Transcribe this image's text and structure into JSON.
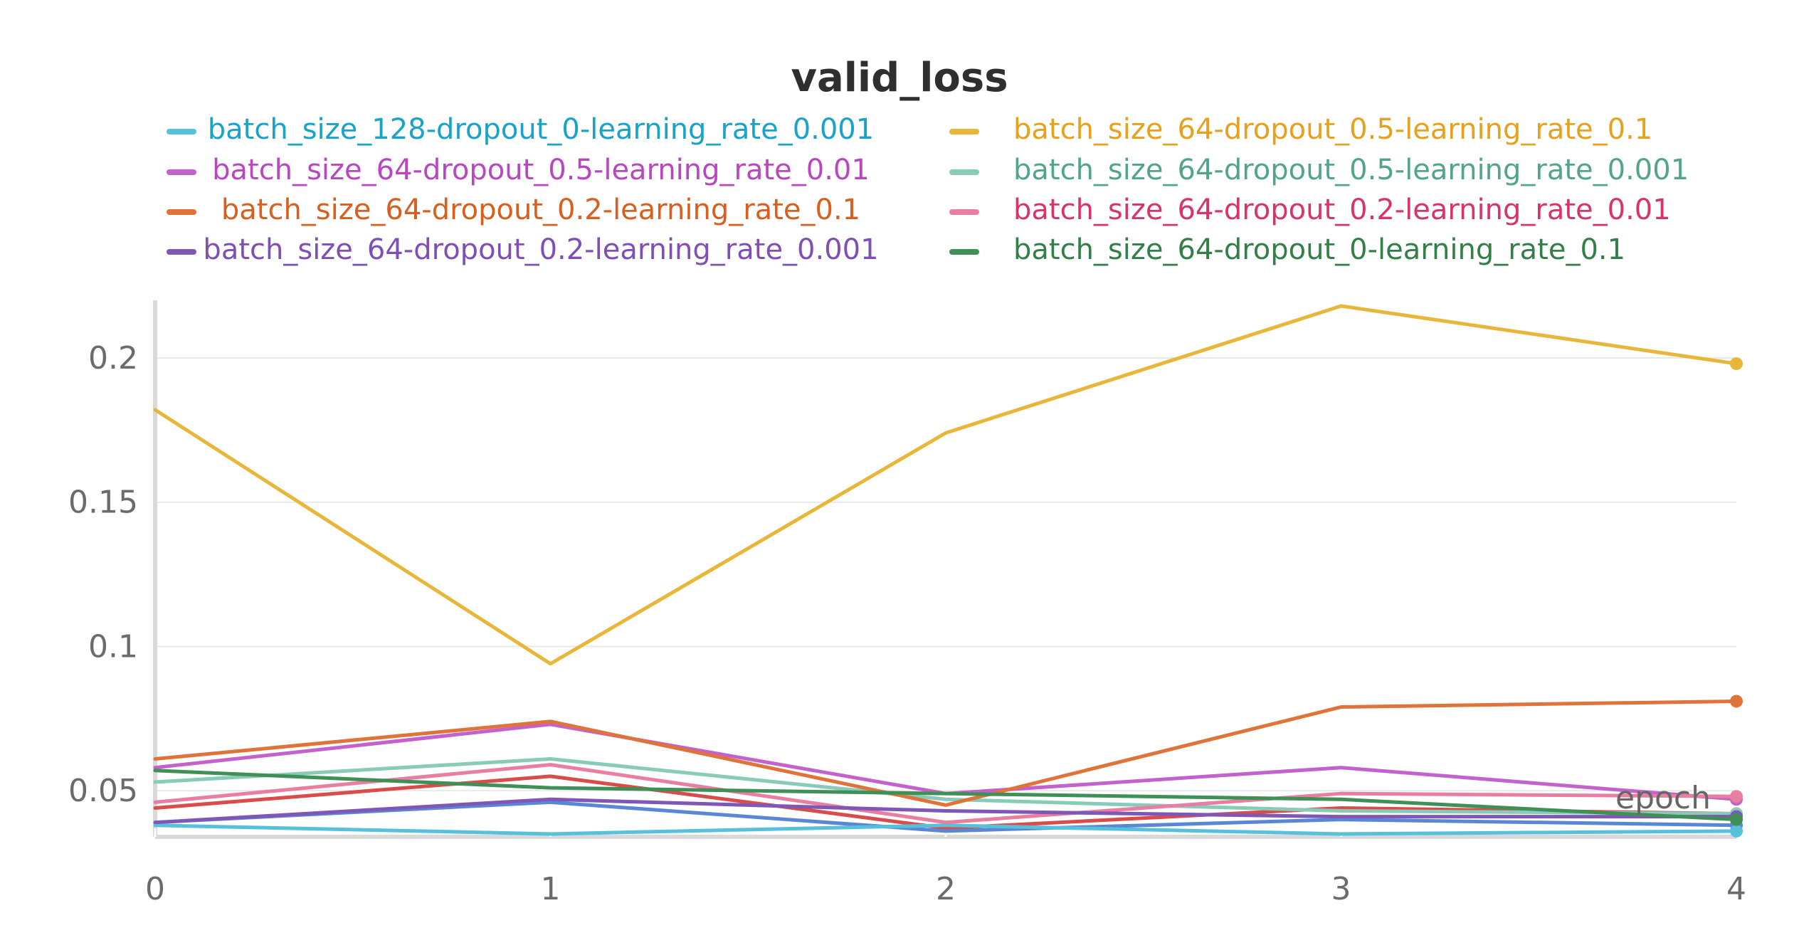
{
  "chart_data": {
    "type": "line",
    "title": "valid_loss",
    "xlabel": "epoch",
    "ylabel": "",
    "x": [
      0,
      1,
      2,
      3,
      4
    ],
    "xlim": [
      0,
      4
    ],
    "ylim": [
      0.034,
      0.218
    ],
    "x_ticks": [
      {
        "value": 0,
        "label": "0"
      },
      {
        "value": 1,
        "label": "1"
      },
      {
        "value": 2,
        "label": "2"
      },
      {
        "value": 3,
        "label": "3"
      },
      {
        "value": 4,
        "label": "4"
      }
    ],
    "y_ticks": [
      {
        "value": 0.05,
        "label": "0.05"
      },
      {
        "value": 0.1,
        "label": "0.1"
      },
      {
        "value": 0.15,
        "label": "0.15"
      },
      {
        "value": 0.2,
        "label": "0.2"
      }
    ],
    "grid": true,
    "legend_position": "top",
    "series": [
      {
        "name": "batch_size_128-dropout_0-learning_rate_0.001",
        "color": "#57c1dc",
        "text_color": "#1aa3c9",
        "values": [
          0.038,
          0.035,
          0.038,
          0.035,
          0.036
        ]
      },
      {
        "name": "batch_size_64-dropout_0.5-learning_rate_0.1",
        "color": "#e8b739",
        "text_color": "#e6a11d",
        "values": [
          0.182,
          0.094,
          0.174,
          0.218,
          0.198
        ]
      },
      {
        "name": "batch_size_64-dropout_0.5-learning_rate_0.01",
        "color": "#c362cc",
        "text_color": "#b847c0",
        "values": [
          0.058,
          0.073,
          0.049,
          0.058,
          0.047
        ]
      },
      {
        "name": "batch_size_64-dropout_0.5-learning_rate_0.001",
        "color": "#88cbb9",
        "text_color": "#52a58c",
        "values": [
          0.053,
          0.061,
          0.047,
          0.043,
          0.042
        ]
      },
      {
        "name": "batch_size_64-dropout_0.2-learning_rate_0.1",
        "color": "#e0733a",
        "text_color": "#d95f1e",
        "values": [
          0.061,
          0.074,
          0.045,
          0.079,
          0.081
        ]
      },
      {
        "name": "batch_size_64-dropout_0.2-learning_rate_0.01",
        "color": "#e87ea0",
        "text_color": "#d8336a",
        "values": [
          0.046,
          0.059,
          0.039,
          0.049,
          0.048
        ]
      },
      {
        "name": "batch_size_64-dropout_0.2-learning_rate_0.001",
        "color": "#7f57b6",
        "text_color": "#7f4fb8",
        "values": [
          0.039,
          0.047,
          0.043,
          0.041,
          0.041
        ]
      },
      {
        "name": "batch_size_64-dropout_0-learning_rate_0.1",
        "color": "#3f8f57",
        "text_color": "#327f48",
        "values": [
          0.057,
          0.051,
          0.049,
          0.047,
          0.04
        ]
      }
    ],
    "extra_lines": [
      {
        "color": "#d94c4b",
        "values": [
          0.044,
          0.055,
          0.037,
          0.044,
          0.042
        ]
      },
      {
        "color": "#5a86d6",
        "values": [
          0.039,
          0.046,
          0.036,
          0.04,
          0.038
        ]
      }
    ]
  }
}
